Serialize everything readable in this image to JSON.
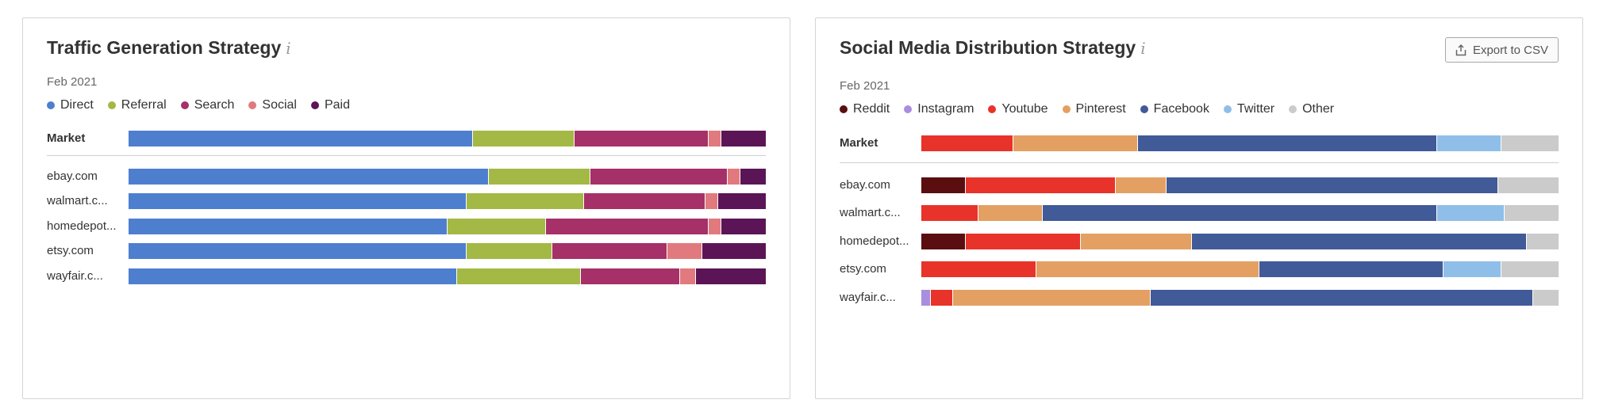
{
  "left_panel": {
    "title": "Traffic Generation Strategy",
    "info_glyph": "i",
    "date": "Feb 2021"
  },
  "right_panel": {
    "title": "Social Media Distribution Strategy",
    "info_glyph": "i",
    "date": "Feb 2021",
    "export_label": "Export to CSV"
  },
  "chart_data": [
    {
      "type": "bar",
      "orientation": "horizontal",
      "stacked": "percent",
      "title": "Traffic Generation Strategy",
      "subtitle": "Feb 2021",
      "legend_position": "top",
      "series": [
        {
          "name": "Direct",
          "color": "#4e7fcf"
        },
        {
          "name": "Referral",
          "color": "#a3b845"
        },
        {
          "name": "Search",
          "color": "#a63068"
        },
        {
          "name": "Social",
          "color": "#e17a7e"
        },
        {
          "name": "Paid",
          "color": "#5b1556"
        }
      ],
      "rows": [
        {
          "label": "Market",
          "values": [
            54,
            16,
            21,
            2,
            7
          ]
        },
        {
          "label": "ebay.com",
          "values": [
            56.5,
            16,
            21.5,
            2,
            4
          ]
        },
        {
          "label": "walmart.c...",
          "values": [
            53,
            18.5,
            19,
            2,
            7.5
          ]
        },
        {
          "label": "homedepot...",
          "values": [
            50,
            15.5,
            25.5,
            2,
            7
          ]
        },
        {
          "label": "etsy.com",
          "values": [
            53,
            13.5,
            18,
            5.5,
            10
          ]
        },
        {
          "label": "wayfair.c...",
          "values": [
            51.5,
            19.5,
            15.5,
            2.5,
            11
          ]
        }
      ]
    },
    {
      "type": "bar",
      "orientation": "horizontal",
      "stacked": "percent",
      "title": "Social Media Distribution Strategy",
      "subtitle": "Feb 2021",
      "legend_position": "top",
      "series": [
        {
          "name": "Reddit",
          "color": "#5a0e10"
        },
        {
          "name": "Instagram",
          "color": "#a98ee0"
        },
        {
          "name": "Youtube",
          "color": "#e8332a"
        },
        {
          "name": "Pinterest",
          "color": "#e3a062"
        },
        {
          "name": "Facebook",
          "color": "#415a98"
        },
        {
          "name": "Twitter",
          "color": "#8fbfe8"
        },
        {
          "name": "Other",
          "color": "#cbcbcb"
        }
      ],
      "rows": [
        {
          "label": "Market",
          "values": [
            0,
            0,
            14.5,
            19.5,
            47,
            10,
            9
          ]
        },
        {
          "label": "ebay.com",
          "values": [
            7,
            0,
            23.5,
            8,
            52,
            0,
            9.5
          ]
        },
        {
          "label": "walmart.c...",
          "values": [
            0,
            0,
            9,
            10,
            62,
            10.5,
            8.5
          ]
        },
        {
          "label": "homedepot...",
          "values": [
            7,
            0,
            18,
            17.5,
            52.5,
            0,
            5
          ]
        },
        {
          "label": "etsy.com",
          "values": [
            0,
            0,
            18,
            35,
            29,
            9,
            9
          ]
        },
        {
          "label": "wayfair.c...",
          "values": [
            0,
            1.5,
            3.5,
            31,
            60,
            0,
            4
          ]
        }
      ]
    }
  ]
}
